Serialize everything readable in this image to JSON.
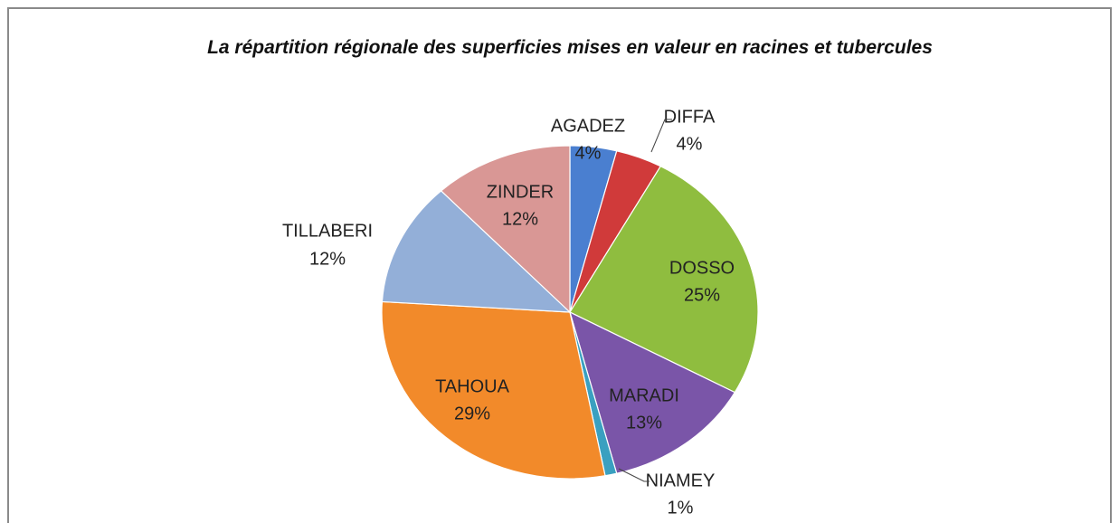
{
  "chart_data": {
    "type": "pie",
    "title": "La répartition régionale des superficies mises en valeur en racines et tubercules",
    "categories": [
      "AGADEZ",
      "DIFFA",
      "DOSSO",
      "MARADI",
      "NIAMEY",
      "TAHOUA",
      "TILLABERI",
      "ZINDER"
    ],
    "values": [
      4,
      4,
      25,
      13,
      1,
      29,
      12,
      12
    ],
    "value_labels": [
      "4%",
      "4%",
      "25%",
      "13%",
      "1%",
      "29%",
      "12%",
      "12%"
    ],
    "colors": [
      "#4a7fd0",
      "#d03a3a",
      "#8fbd3f",
      "#7a55a8",
      "#3aa0c0",
      "#f28a2a",
      "#93afd8",
      "#d99795"
    ]
  }
}
